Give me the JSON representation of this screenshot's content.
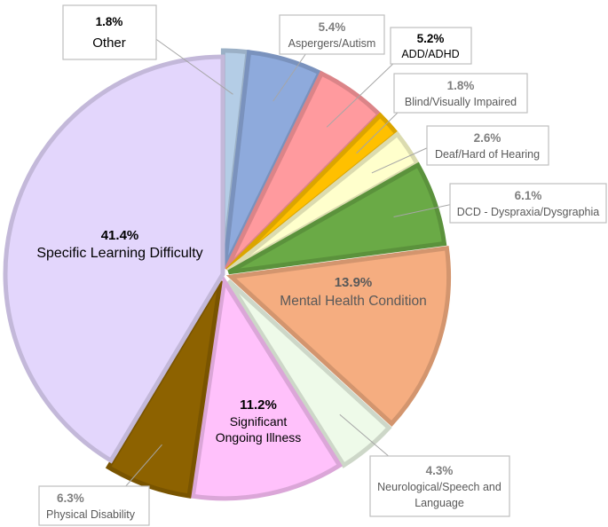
{
  "chart_data": {
    "type": "pie",
    "title": "",
    "start_angle_deg": 0,
    "direction": "clockwise",
    "exploded": true,
    "slices": [
      {
        "name": "Other",
        "value": 1.8,
        "label": "1.8%",
        "color": "#b4cde6"
      },
      {
        "name": "Aspergers/Autism",
        "value": 5.4,
        "label": "5.4%",
        "color": "#8eaadc"
      },
      {
        "name": "ADD/ADHD",
        "value": 5.2,
        "label": "5.2%",
        "color": "#ff9a9e"
      },
      {
        "name": "Blind/Visually Impaired",
        "value": 1.8,
        "label": "1.8%",
        "color": "#ffc000"
      },
      {
        "name": "Deaf/Hard of Hearing",
        "value": 2.6,
        "label": "2.6%",
        "color": "#ffffcc"
      },
      {
        "name": "DCD - Dyspraxia/Dysgraphia",
        "value": 6.1,
        "label": "6.1%",
        "color": "#6aaa46"
      },
      {
        "name": "Mental Health Condition",
        "value": 13.9,
        "label": "13.9%",
        "color": "#f5ad80"
      },
      {
        "name": "Neurological/Speech and Language",
        "value": 4.3,
        "label": "4.3%",
        "color": "#eefae9"
      },
      {
        "name": "Significant Ongoing Illness",
        "value": 11.2,
        "label": "11.2%",
        "color": "#ffc1fb"
      },
      {
        "name": "Physical Disability",
        "value": 6.3,
        "label": "6.3%",
        "color": "#8d6200"
      },
      {
        "name": "Specific Learning Difficulty",
        "value": 41.4,
        "label": "41.4%",
        "color": "#e3d6fc"
      }
    ]
  },
  "labels": {
    "other_name": "Other",
    "aspergers_name": "Aspergers/Autism",
    "adhd_name": "ADD/ADHD",
    "blind_name": "Blind/Visually Impaired",
    "deaf_name": "Deaf/Hard of Hearing",
    "dcd_name": "DCD - Dyspraxia/Dysgraphia",
    "mental_name": "Mental Health Condition",
    "neuro_name_line1": "Neurological/Speech and",
    "neuro_name_line2": "Language",
    "illness_name_line1": "Significant",
    "illness_name_line2": "Ongoing Illness",
    "physical_name": "Physical Disability",
    "sld_name": "Specific Learning Difficulty"
  }
}
